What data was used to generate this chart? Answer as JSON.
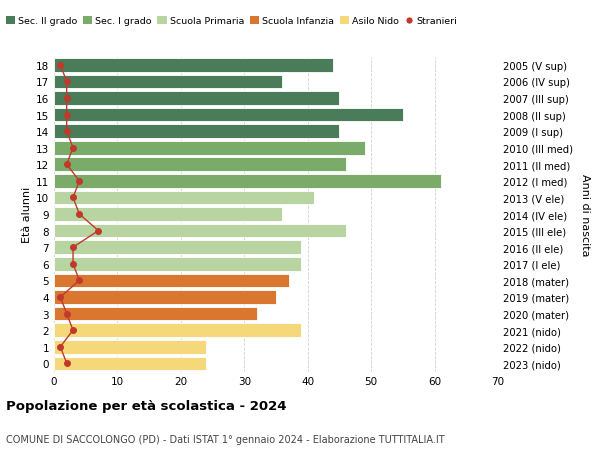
{
  "ages": [
    18,
    17,
    16,
    15,
    14,
    13,
    12,
    11,
    10,
    9,
    8,
    7,
    6,
    5,
    4,
    3,
    2,
    1,
    0
  ],
  "bar_values": [
    44,
    36,
    45,
    55,
    45,
    49,
    46,
    61,
    41,
    36,
    46,
    39,
    39,
    37,
    35,
    32,
    39,
    24,
    24
  ],
  "stranieri": [
    1,
    2,
    2,
    2,
    2,
    3,
    2,
    4,
    3,
    4,
    7,
    3,
    3,
    4,
    1,
    2,
    3,
    1,
    2
  ],
  "right_labels": [
    "2005 (V sup)",
    "2006 (IV sup)",
    "2007 (III sup)",
    "2008 (II sup)",
    "2009 (I sup)",
    "2010 (III med)",
    "2011 (II med)",
    "2012 (I med)",
    "2013 (V ele)",
    "2014 (IV ele)",
    "2015 (III ele)",
    "2016 (II ele)",
    "2017 (I ele)",
    "2018 (mater)",
    "2019 (mater)",
    "2020 (mater)",
    "2021 (nido)",
    "2022 (nido)",
    "2023 (nido)"
  ],
  "bar_colors": [
    "#4a7c59",
    "#4a7c59",
    "#4a7c59",
    "#4a7c59",
    "#4a7c59",
    "#7aab68",
    "#7aab68",
    "#7aab68",
    "#b8d4a0",
    "#b8d4a0",
    "#b8d4a0",
    "#b8d4a0",
    "#b8d4a0",
    "#d97630",
    "#d97630",
    "#d97630",
    "#f5d87a",
    "#f5d87a",
    "#f5d87a"
  ],
  "legend_labels": [
    "Sec. II grado",
    "Sec. I grado",
    "Scuola Primaria",
    "Scuola Infanzia",
    "Asilo Nido",
    "Stranieri"
  ],
  "legend_colors": [
    "#4a7c59",
    "#7aab68",
    "#b8d4a0",
    "#d97630",
    "#f5d87a",
    "#c0392b"
  ],
  "stranieri_color": "#c0392b",
  "title": "Popolazione per età scolastica - 2024",
  "subtitle": "COMUNE DI SACCOLONGO (PD) - Dati ISTAT 1° gennaio 2024 - Elaborazione TUTTITALIA.IT",
  "ylabel_left": "Età alunni",
  "ylabel_right": "Anni di nascita",
  "xlim": [
    0,
    70
  ],
  "background_color": "#ffffff",
  "grid_color": "#cccccc"
}
